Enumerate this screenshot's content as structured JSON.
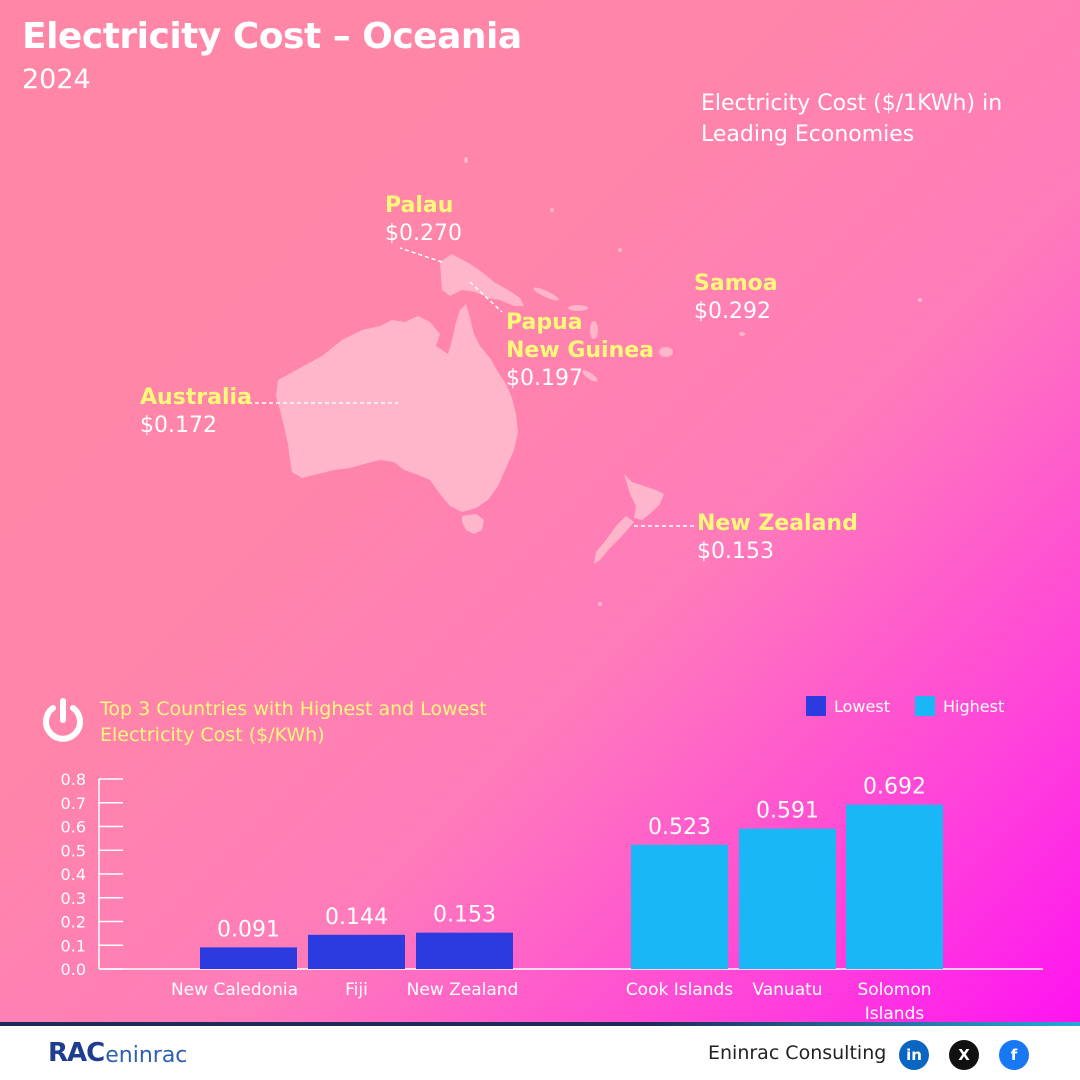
{
  "header": {
    "title": "Electricity Cost – Oceania",
    "year": "2024"
  },
  "map": {
    "subtitle": "Electricity Cost ($/1KWh) in Leading Economies",
    "labels": [
      {
        "id": "palau",
        "name_lines": [
          "Palau"
        ],
        "cost": "$0.270"
      },
      {
        "id": "samoa",
        "name_lines": [
          "Samoa"
        ],
        "cost": "$0.292"
      },
      {
        "id": "png",
        "name_lines": [
          "Papua",
          "New Guinea"
        ],
        "cost": "$0.197"
      },
      {
        "id": "australia",
        "name_lines": [
          "Australia"
        ],
        "cost": "$0.172"
      },
      {
        "id": "nz",
        "name_lines": [
          "New Zealand"
        ],
        "cost": "$0.153"
      }
    ]
  },
  "chart_section": {
    "subtitle": "Top 3 Countries with Highest and Lowest Electricity Cost ($/KWh)",
    "legend": [
      {
        "label": "Lowest",
        "color": "#2b3be0"
      },
      {
        "label": "Highest",
        "color": "#19b7f5"
      }
    ]
  },
  "chart_data": {
    "type": "bar",
    "title": "Top 3 Countries with Highest and Lowest Electricity Cost ($/KWh)",
    "ylim": [
      0,
      0.8
    ],
    "yticks": [
      "0.0",
      "0.1",
      "0.2",
      "0.3",
      "0.4",
      "0.5",
      "0.6",
      "0.7",
      "0.8"
    ],
    "series": [
      {
        "name": "Lowest",
        "color": "#2b3be0",
        "categories": [
          "New Caledonia",
          "Fiji",
          "New Zealand"
        ],
        "values": [
          0.091,
          0.144,
          0.153
        ],
        "value_labels": [
          "0.091",
          "0.144",
          "0.153"
        ]
      },
      {
        "name": "Highest",
        "color": "#19b7f5",
        "categories": [
          "Cook Islands",
          "Vanuatu",
          "Solomon Islands"
        ],
        "values": [
          0.523,
          0.591,
          0.692
        ],
        "value_labels": [
          "0.523",
          "0.591",
          "0.692"
        ]
      }
    ],
    "grid": false,
    "legend_position": "top-right"
  },
  "footer": {
    "logo_mark": "RAC",
    "logo_text": "eninrac",
    "company": "Eninrac Consulting",
    "social": [
      {
        "name": "linkedin",
        "glyph": "in",
        "color": "#0a66c2"
      },
      {
        "name": "x",
        "glyph": "X",
        "color": "#111111"
      },
      {
        "name": "facebook",
        "glyph": "f",
        "color": "#1877f2"
      }
    ]
  }
}
